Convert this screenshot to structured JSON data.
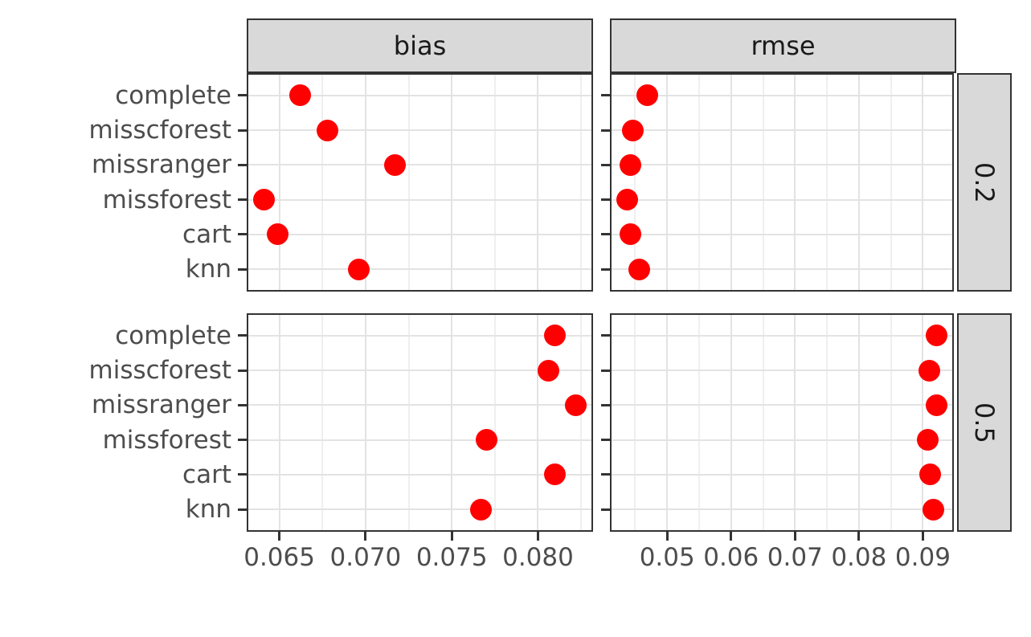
{
  "figure": {
    "background": "#FFFFFF",
    "point_color": "#FF0000",
    "strip_fill": "#D9D9D9",
    "strip_border": "#333333",
    "panel_border": "#333333",
    "grid_major_color": "#E3E3E3",
    "grid_minor_color": "#EFEFEF",
    "axis_text_color": "#4D4D4D",
    "tick_color": "#333333"
  },
  "chart_data": {
    "type": "scatter",
    "title": "",
    "xlabel": "",
    "ylabel": "",
    "grid": "on",
    "legend": "none",
    "layout": "faceted dot plot, 2 metric columns x 2 missing-rate rows, red points, theme_bw style",
    "categories": [
      "complete",
      "misscforest",
      "missranger",
      "missforest",
      "cart",
      "knn"
    ],
    "facet_cols": [
      {
        "label": "bias",
        "xlim": [
          0.0632,
          0.0831
        ],
        "ticks": [
          0.065,
          0.07,
          0.075,
          0.08
        ],
        "tick_labels": [
          "0.065",
          "0.070",
          "0.075",
          "0.080"
        ]
      },
      {
        "label": "rmse",
        "xlim": [
          0.0413,
          0.0946
        ],
        "ticks": [
          0.05,
          0.06,
          0.07,
          0.08,
          0.09
        ],
        "tick_labels": [
          "0.05",
          "0.06",
          "0.07",
          "0.08",
          "0.09"
        ]
      }
    ],
    "facet_rows": [
      {
        "label": "0.2"
      },
      {
        "label": "0.5"
      }
    ],
    "series": [
      {
        "row": "0.2",
        "col": "bias",
        "values": [
          0.0662,
          0.0678,
          0.0717,
          0.0641,
          0.0649,
          0.0696
        ]
      },
      {
        "row": "0.2",
        "col": "rmse",
        "values": [
          0.0469,
          0.0446,
          0.0443,
          0.0437,
          0.0443,
          0.0456
        ]
      },
      {
        "row": "0.5",
        "col": "bias",
        "values": [
          0.081,
          0.0806,
          0.0822,
          0.077,
          0.081,
          0.0767
        ]
      },
      {
        "row": "0.5",
        "col": "rmse",
        "values": [
          0.0922,
          0.091,
          0.0922,
          0.0908,
          0.0911,
          0.0917
        ]
      }
    ]
  }
}
